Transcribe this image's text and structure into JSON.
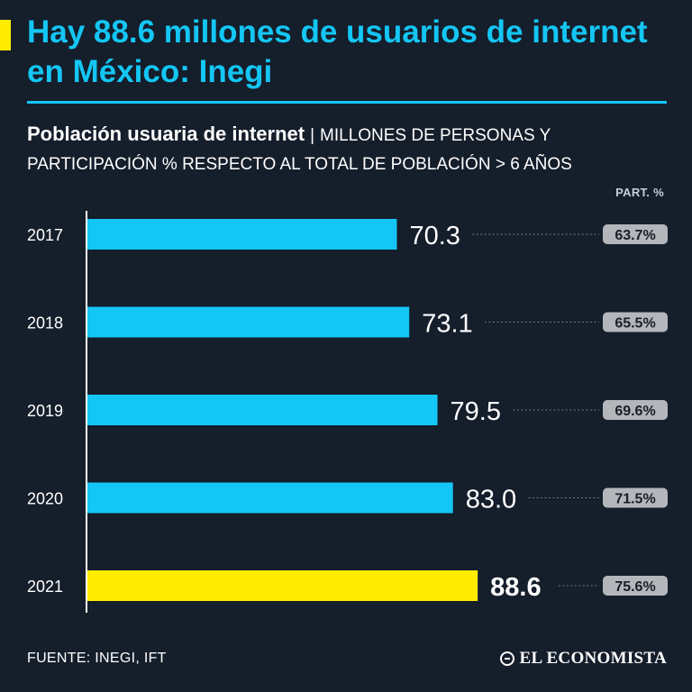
{
  "header": {
    "title": "Hay 88.6 millones de usuarios de internet en México: Inegi"
  },
  "subtitle": {
    "strong": "Población usuaria de internet",
    "separator": "|",
    "rest": "MILLONES DE PERSONAS Y PARTICIPACIÓN % RESPECTO AL TOTAL DE POBLACIÓN > 6 AÑOS"
  },
  "footer": {
    "source": "FUENTE: INEGI, IFT",
    "logo": "EL ECONOMISTA"
  },
  "colors": {
    "background": "#151e2b",
    "accent_blue": "#14c6f4",
    "highlight_yellow": "#ffec00",
    "badge_gray": "#b3b6ba"
  },
  "chart_data": {
    "type": "bar",
    "orientation": "horizontal",
    "title": "Población usuaria de internet",
    "categories": [
      "2017",
      "2018",
      "2019",
      "2020",
      "2021"
    ],
    "values": [
      70.3,
      73.1,
      79.5,
      83.0,
      88.6
    ],
    "value_labels": [
      "70.3",
      "73.1",
      "79.5",
      "83.0",
      "88.6"
    ],
    "highlight_index": 4,
    "xlim": [
      0,
      100
    ],
    "unit": "millones de personas",
    "secondary_header": "PART. %",
    "secondary_values": [
      63.7,
      65.5,
      69.6,
      71.5,
      75.6
    ],
    "secondary_labels": [
      "63.7%",
      "65.5%",
      "69.6%",
      "71.5%",
      "75.6%"
    ]
  }
}
